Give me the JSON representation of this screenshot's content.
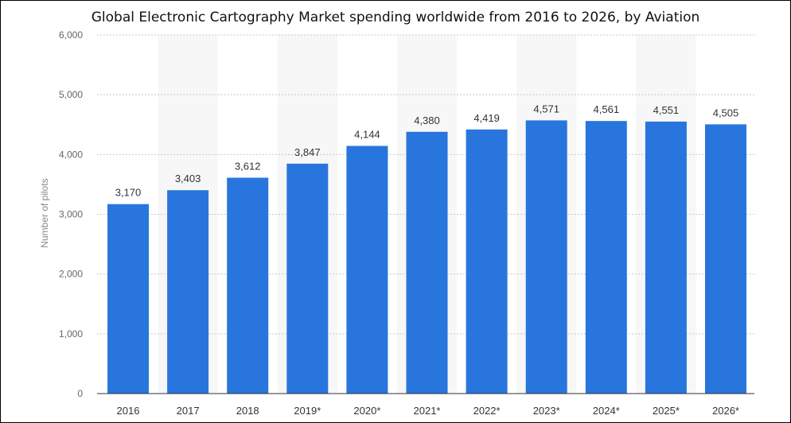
{
  "chart_data": {
    "type": "bar",
    "title": "Global Electronic Cartography Market spending worldwide from 2016 to 2026, by Aviation",
    "xlabel": "",
    "ylabel": "Number of pilots",
    "categories": [
      "2016",
      "2017",
      "2018",
      "2019*",
      "2020*",
      "2021*",
      "2022*",
      "2023*",
      "2024*",
      "2025*",
      "2026*"
    ],
    "values": [
      3170,
      3403,
      3612,
      3847,
      4144,
      4380,
      4419,
      4571,
      4561,
      4551,
      4505
    ],
    "value_labels": [
      "3,170",
      "3,403",
      "3,612",
      "3,847",
      "4,144",
      "4,380",
      "4,419",
      "4,571",
      "4,561",
      "4,551",
      "4,505"
    ],
    "ylim": [
      0,
      6000
    ],
    "yticks": [
      0,
      1000,
      2000,
      3000,
      4000,
      5000,
      6000
    ],
    "ytick_labels": [
      "0",
      "1,000",
      "2,000",
      "3,000",
      "4,000",
      "5,000",
      "6,000"
    ],
    "grid": true,
    "legend": "none",
    "colors": {
      "bar": "#2876dd",
      "alt_band": "#f7f7f7",
      "grid": "#c8c8c8",
      "axis_text": "#666666",
      "value_text": "#333333"
    }
  }
}
